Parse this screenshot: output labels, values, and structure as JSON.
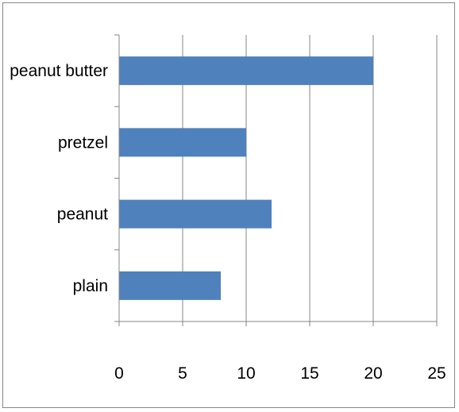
{
  "chart_data": {
    "type": "bar",
    "orientation": "horizontal",
    "categories": [
      "peanut butter",
      "pretzel",
      "peanut",
      "plain"
    ],
    "values": [
      20,
      10,
      12,
      8
    ],
    "title": "",
    "xlabel": "",
    "ylabel": "",
    "xlim": [
      0,
      25
    ],
    "xticks": [
      0,
      5,
      10,
      15,
      20,
      25
    ],
    "grid": "vertical",
    "legend": "none",
    "colors": {
      "bar": "#4f81bd",
      "grid": "#868686",
      "axis": "#868686",
      "border": "#878787"
    }
  }
}
